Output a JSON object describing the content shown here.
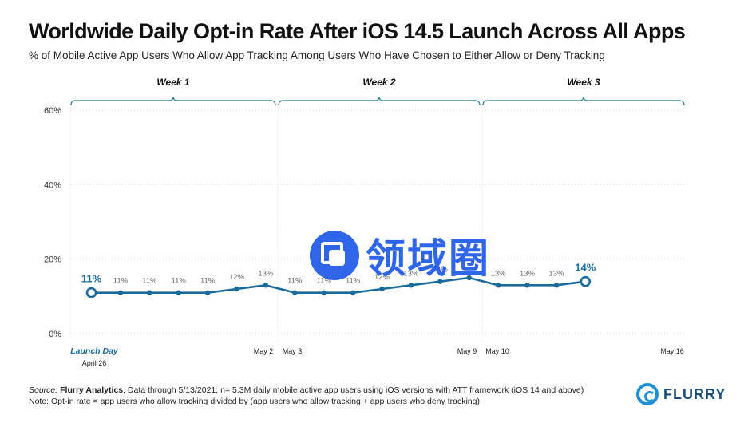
{
  "title": "Worldwide Daily Opt-in Rate After iOS 14.5 Launch Across All Apps",
  "subtitle": "% of Mobile Active App Users Who Allow App Tracking Among Users Who Have Chosen to Either Allow or Deny Tracking",
  "footer": {
    "source_prefix": "Source: ",
    "source_name": "Flurry Analytics",
    "source_rest": ", Data through 5/13/2021, n= 5.3M daily mobile active app users using iOS versions with ATT framework (iOS 14 and above)",
    "note": "Note: Opt-in rate = app users who allow tracking divided by (app users who allow tracking + app users who deny tracking)"
  },
  "logo": {
    "text": "FLURRY",
    "icon": "flurry-swirl-icon"
  },
  "watermark": {
    "text": "领域圈",
    "icon": "watermark-logo-icon"
  },
  "colors": {
    "line": "#1a6a9c",
    "bracket": "#2a7d8c",
    "grid": "#d8d8d8",
    "label": "#666666",
    "logo": "#1f8fd6"
  },
  "chart_data": {
    "type": "line",
    "title": "Worldwide Daily Opt-in Rate After iOS 14.5 Launch Across All Apps",
    "ylim": [
      0,
      60
    ],
    "yticks": [
      "0%",
      "20%",
      "40%",
      "60%"
    ],
    "grid": true,
    "weeks": [
      {
        "label": "Week 1",
        "start": 0,
        "end": 7
      },
      {
        "label": "Week 2",
        "start": 7,
        "end": 14
      },
      {
        "label": "Week 3",
        "start": 14,
        "end": 21
      }
    ],
    "x_labels": [
      {
        "day": 0,
        "text": "Launch Day",
        "sub": "April 26",
        "emphasis": true
      },
      {
        "day": 6.5,
        "text": "May 2"
      },
      {
        "day": 7.5,
        "text": "May 3"
      },
      {
        "day": 13.5,
        "text": "May 9"
      },
      {
        "day": 14.5,
        "text": "May 10"
      },
      {
        "day": 20.5,
        "text": "May 16"
      }
    ],
    "series": [
      {
        "values": [
          11,
          11,
          11,
          11,
          11,
          12,
          13,
          11,
          11,
          11,
          12,
          13,
          14,
          15,
          13,
          13,
          13,
          14
        ],
        "labels": [
          "11%",
          "11%",
          "11%",
          "11%",
          "11%",
          "12%",
          "13%",
          "11%",
          "11%",
          "11%",
          "12%",
          "13%",
          "14%",
          "",
          "13%",
          "13%",
          "13%",
          "14%"
        ]
      }
    ]
  }
}
